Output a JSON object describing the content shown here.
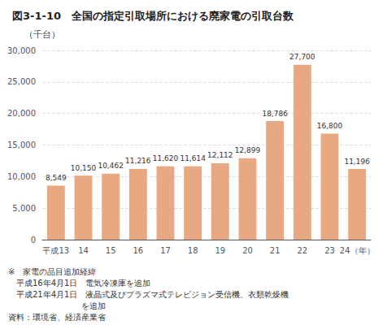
{
  "chart_data": {
    "type": "bar",
    "title": "図3-1-10　全国の指定引取場所における廃家電の引取台数",
    "ylabel": "（千台）",
    "categories": [
      "平成13",
      "14",
      "15",
      "16",
      "17",
      "18",
      "19",
      "20",
      "21",
      "22",
      "23",
      "24（年）"
    ],
    "values": [
      8549,
      10150,
      10462,
      11216,
      11620,
      11614,
      12112,
      12899,
      18786,
      27700,
      16800,
      11196
    ],
    "value_labels": [
      "8,549",
      "10,150",
      "10,462",
      "11,216",
      "11,620",
      "11,614",
      "12,112",
      "12,899",
      "18,786",
      "27,700",
      "16,800",
      "11,196"
    ],
    "data_labels": true,
    "color": "#E8A882",
    "ylim": [
      0,
      30000
    ],
    "yticks": [
      0,
      {
        "value": 5000,
        "label": "5,000"
      },
      {
        "value": 10000,
        "label": "10,000"
      },
      {
        "value": 15000,
        "label": "15,000"
      },
      {
        "value": 20000,
        "label": "20,000"
      },
      {
        "value": 25000,
        "label": "25,000"
      },
      {
        "value": 30000,
        "label": "30,000"
      }
    ],
    "grid": true,
    "annotations": [
      "※　家電の品目追加経緯",
      "　平成16年4月1日　電気冷凍庫を追加",
      "　平成21年4月1日　液晶式及びプラズマ式テレビジョン受信機、衣類乾燥機",
      "　　　　　　　　　を追加",
      "資料：環境省、経済産業省"
    ]
  }
}
